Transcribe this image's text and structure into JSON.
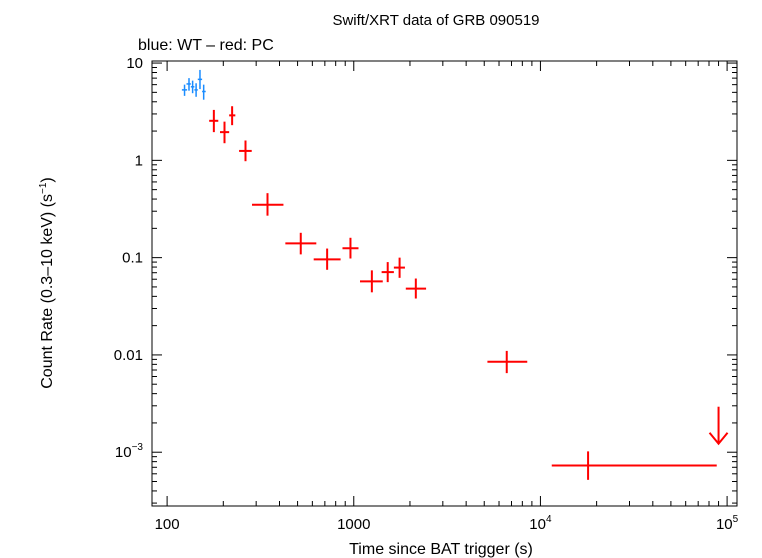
{
  "chart_data": {
    "type": "scatter",
    "title": "Swift/XRT data of GRB 090519",
    "subtitle": "blue: WT – red: PC",
    "xlabel": "Time since BAT trigger (s)",
    "ylabel": "Count Rate (0.3–10 keV) (s",
    "ylabel_sup": "−1",
    "ylabel_tail": ")",
    "xscale": "log",
    "yscale": "log",
    "xlim": [
      83,
      113000
    ],
    "ylim": [
      0.00028,
      10.5
    ],
    "x_ticks": [
      {
        "value": 100,
        "label": "100"
      },
      {
        "value": 1000,
        "label": "1000"
      },
      {
        "value": 10000,
        "base": "10",
        "exp": "4"
      },
      {
        "value": 100000,
        "base": "10",
        "exp": "5"
      }
    ],
    "y_ticks": [
      {
        "value": 10,
        "label": "10"
      },
      {
        "value": 1,
        "label": "1"
      },
      {
        "value": 0.1,
        "label": "0.1"
      },
      {
        "value": 0.01,
        "label": "0.01"
      },
      {
        "value": 0.001,
        "base": "10",
        "exp": "−3"
      }
    ],
    "series": [
      {
        "name": "WT",
        "color": "#1a8cff",
        "points": [
          {
            "x": 124,
            "xlo": 120,
            "xhi": 128,
            "y": 5.3,
            "ylo": 4.6,
            "yhi": 6.0
          },
          {
            "x": 131,
            "xlo": 127,
            "xhi": 134,
            "y": 6.1,
            "ylo": 5.2,
            "yhi": 7.0
          },
          {
            "x": 137,
            "xlo": 134,
            "xhi": 140,
            "y": 5.7,
            "ylo": 4.9,
            "yhi": 6.6
          },
          {
            "x": 143,
            "xlo": 140,
            "xhi": 146,
            "y": 5.3,
            "ylo": 4.5,
            "yhi": 6.2
          },
          {
            "x": 150,
            "xlo": 146,
            "xhi": 154,
            "y": 6.8,
            "ylo": 5.4,
            "yhi": 8.5
          },
          {
            "x": 157,
            "xlo": 154,
            "xhi": 161,
            "y": 5.1,
            "ylo": 4.2,
            "yhi": 6.0
          }
        ]
      },
      {
        "name": "PC",
        "color": "#ff0000",
        "points": [
          {
            "x": 178,
            "xlo": 168,
            "xhi": 188,
            "y": 2.55,
            "ylo": 1.95,
            "yhi": 3.3
          },
          {
            "x": 203,
            "xlo": 192,
            "xhi": 215,
            "y": 1.95,
            "ylo": 1.5,
            "yhi": 2.5
          },
          {
            "x": 223,
            "xlo": 215,
            "xhi": 232,
            "y": 2.9,
            "ylo": 2.3,
            "yhi": 3.6
          },
          {
            "x": 263,
            "xlo": 243,
            "xhi": 284,
            "y": 1.25,
            "ylo": 0.98,
            "yhi": 1.6
          },
          {
            "x": 345,
            "xlo": 285,
            "xhi": 420,
            "y": 0.35,
            "ylo": 0.27,
            "yhi": 0.46
          },
          {
            "x": 520,
            "xlo": 430,
            "xhi": 630,
            "y": 0.14,
            "ylo": 0.108,
            "yhi": 0.18
          },
          {
            "x": 720,
            "xlo": 610,
            "xhi": 850,
            "y": 0.096,
            "ylo": 0.075,
            "yhi": 0.124
          },
          {
            "x": 960,
            "xlo": 870,
            "xhi": 1060,
            "y": 0.125,
            "ylo": 0.098,
            "yhi": 0.16
          },
          {
            "x": 1250,
            "xlo": 1080,
            "xhi": 1430,
            "y": 0.057,
            "ylo": 0.044,
            "yhi": 0.074
          },
          {
            "x": 1520,
            "xlo": 1410,
            "xhi": 1640,
            "y": 0.071,
            "ylo": 0.056,
            "yhi": 0.09
          },
          {
            "x": 1760,
            "xlo": 1640,
            "xhi": 1880,
            "y": 0.079,
            "ylo": 0.062,
            "yhi": 0.1
          },
          {
            "x": 2150,
            "xlo": 1900,
            "xhi": 2440,
            "y": 0.048,
            "ylo": 0.038,
            "yhi": 0.061
          },
          {
            "x": 6600,
            "xlo": 5200,
            "xhi": 8500,
            "y": 0.0085,
            "ylo": 0.0065,
            "yhi": 0.011
          },
          {
            "x": 18000,
            "xlo": 11500,
            "xhi": 88000,
            "y": 0.00073,
            "ylo": 0.00052,
            "yhi": 0.00102
          }
        ],
        "upper_limits": [
          {
            "x": 90000,
            "y": 0.0028
          }
        ]
      }
    ],
    "grid": false,
    "legend": "none"
  }
}
